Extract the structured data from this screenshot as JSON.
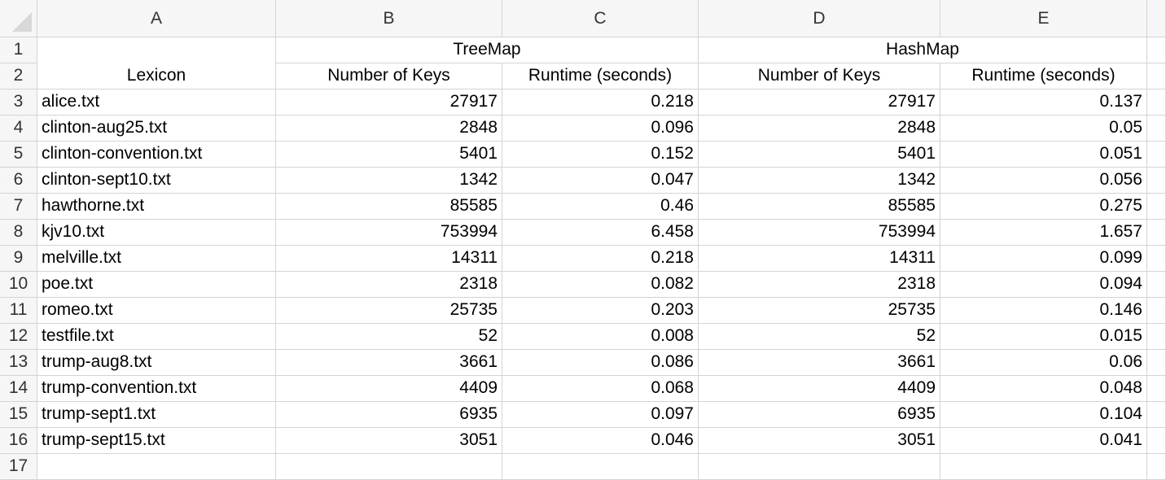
{
  "columns": [
    "A",
    "B",
    "C",
    "D",
    "E"
  ],
  "row_numbers": [
    "1",
    "2",
    "3",
    "4",
    "5",
    "6",
    "7",
    "8",
    "9",
    "10",
    "11",
    "12",
    "13",
    "14",
    "15",
    "16",
    "17"
  ],
  "header_row1": {
    "b": "TreeMap",
    "d": "HashMap"
  },
  "header_row2": {
    "a": "Lexicon",
    "b": "Number of Keys",
    "c": "Runtime (seconds)",
    "d": "Number of Keys",
    "e": "Runtime (seconds)"
  },
  "rows": [
    {
      "lexicon": "alice.txt",
      "tree_keys": "27917",
      "tree_runtime": "0.218",
      "hash_keys": "27917",
      "hash_runtime": "0.137"
    },
    {
      "lexicon": "clinton-aug25.txt",
      "tree_keys": "2848",
      "tree_runtime": "0.096",
      "hash_keys": "2848",
      "hash_runtime": "0.05"
    },
    {
      "lexicon": "clinton-convention.txt",
      "tree_keys": "5401",
      "tree_runtime": "0.152",
      "hash_keys": "5401",
      "hash_runtime": "0.051"
    },
    {
      "lexicon": "clinton-sept10.txt",
      "tree_keys": "1342",
      "tree_runtime": "0.047",
      "hash_keys": "1342",
      "hash_runtime": "0.056"
    },
    {
      "lexicon": "hawthorne.txt",
      "tree_keys": "85585",
      "tree_runtime": "0.46",
      "hash_keys": "85585",
      "hash_runtime": "0.275"
    },
    {
      "lexicon": "kjv10.txt",
      "tree_keys": "753994",
      "tree_runtime": "6.458",
      "hash_keys": "753994",
      "hash_runtime": "1.657"
    },
    {
      "lexicon": "melville.txt",
      "tree_keys": "14311",
      "tree_runtime": "0.218",
      "hash_keys": "14311",
      "hash_runtime": "0.099"
    },
    {
      "lexicon": "poe.txt",
      "tree_keys": "2318",
      "tree_runtime": "0.082",
      "hash_keys": "2318",
      "hash_runtime": "0.094"
    },
    {
      "lexicon": "romeo.txt",
      "tree_keys": "25735",
      "tree_runtime": "0.203",
      "hash_keys": "25735",
      "hash_runtime": "0.146"
    },
    {
      "lexicon": "testfile.txt",
      "tree_keys": "52",
      "tree_runtime": "0.008",
      "hash_keys": "52",
      "hash_runtime": "0.015"
    },
    {
      "lexicon": "trump-aug8.txt",
      "tree_keys": "3661",
      "tree_runtime": "0.086",
      "hash_keys": "3661",
      "hash_runtime": "0.06"
    },
    {
      "lexicon": "trump-convention.txt",
      "tree_keys": "4409",
      "tree_runtime": "0.068",
      "hash_keys": "4409",
      "hash_runtime": "0.048"
    },
    {
      "lexicon": "trump-sept1.txt",
      "tree_keys": "6935",
      "tree_runtime": "0.097",
      "hash_keys": "6935",
      "hash_runtime": "0.104"
    },
    {
      "lexicon": "trump-sept15.txt",
      "tree_keys": "3051",
      "tree_runtime": "0.046",
      "hash_keys": "3051",
      "hash_runtime": "0.041"
    }
  ]
}
